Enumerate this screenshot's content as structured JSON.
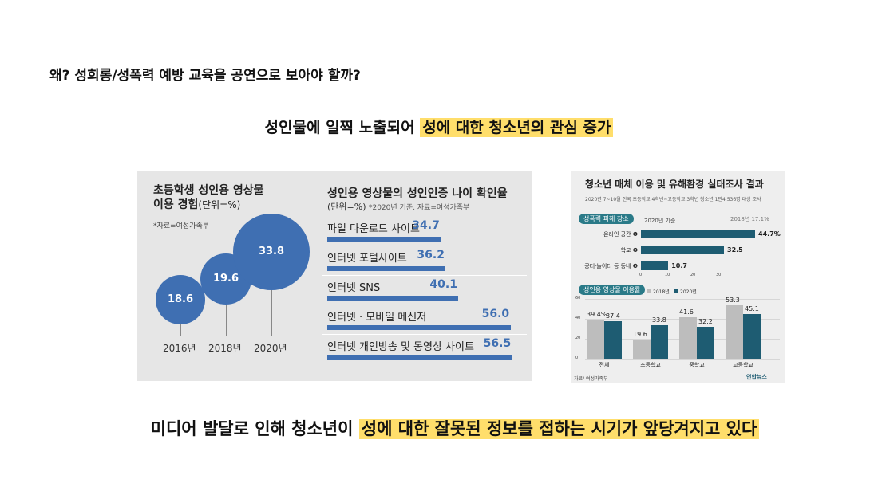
{
  "heading": "왜? 성희롱/성폭력 예방 교육을 공연으로 보아야 할까?",
  "line1": {
    "plain": "성인물에 일찍 노출되어 ",
    "highlight": "성에 대한 청소년의 관심 증가"
  },
  "line2": {
    "plain": "미디어 발달로 인해 청소년이 ",
    "highlight": "성에 대한 잘못된 정보를 접하는 시기가 앞당겨지고 있다"
  },
  "panel_left": {
    "title_line1": "초등학생 성인용 영상물",
    "title_line2": "이용 경험",
    "unit": "(단위=%)",
    "source": "*자료=여성가족부",
    "bubbles": [
      {
        "year": "2016년",
        "value": 18.6,
        "label": "18.6"
      },
      {
        "year": "2018년",
        "value": 19.6,
        "label": "19.6"
      },
      {
        "year": "2020년",
        "value": 33.8,
        "label": "33.8"
      }
    ],
    "bars_title": "성인용 영상물의 성인인증 나이 확인율",
    "bars_unit": "(단위=%)",
    "bars_note": "*2020년 기준, 자료=여성가족부",
    "bars": [
      {
        "label": "파일 다운로드 사이트",
        "value": 34.7,
        "text": "34.7"
      },
      {
        "label": "인터넷 포털사이트",
        "value": 36.2,
        "text": "36.2"
      },
      {
        "label": "인터넷 SNS",
        "value": 40.1,
        "text": "40.1"
      },
      {
        "label": "인터넷 · 모바일 메신저",
        "value": 56.0,
        "text": "56.0"
      },
      {
        "label": "인터넷 개인방송 및 동영상 사이트",
        "value": 56.5,
        "text": "56.5"
      }
    ]
  },
  "panel_right": {
    "title": "청소년 매체 이용 및 유해환경 실태조사 결과",
    "subtitle": "2020년 7~10월 전국 초등학교 4학년~고등학교 3학년 청소년 1만4,536명 대상 조사",
    "section1_label": "성폭력 피해 장소",
    "section1_basis": "2020년 기준",
    "section1_ref": "2018년 17.1%",
    "hbars": [
      {
        "label": "온라인 공간 ❶",
        "value": 44.7,
        "text": "44.7%"
      },
      {
        "label": "학교 ❷",
        "value": 32.5,
        "text": "32.5"
      },
      {
        "label": "공터·놀이터 등 동네 ❸",
        "value": 10.7,
        "text": "10.7"
      }
    ],
    "haxis_ticks": [
      "0",
      "10",
      "20",
      "30"
    ],
    "section2_label": "성인용 영상물 이용률",
    "legend": [
      "2018년",
      "2020년"
    ],
    "vaxis_ticks": [
      "0",
      "20",
      "40",
      "60"
    ],
    "groups": [
      {
        "cat": "전체",
        "v2018": 39.4,
        "t2018": "39.4%",
        "v2020": 37.4,
        "t2020": "37.4"
      },
      {
        "cat": "초등학교",
        "v2018": 19.6,
        "t2018": "19.6",
        "v2020": 33.8,
        "t2020": "33.8"
      },
      {
        "cat": "중학교",
        "v2018": 41.6,
        "t2018": "41.6",
        "v2020": 32.2,
        "t2020": "32.2"
      },
      {
        "cat": "고등학교",
        "v2018": 53.3,
        "t2018": "53.3",
        "v2020": 45.1,
        "t2020": "45.1"
      }
    ],
    "source": "자료/ 여성가족부",
    "logo": "연합뉴스",
    "colors": {
      "y2018": "#bdbdbd",
      "y2020": "#1e5c72"
    }
  }
}
